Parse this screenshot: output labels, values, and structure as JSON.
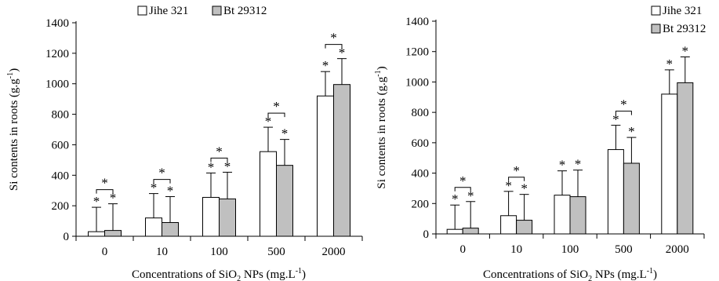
{
  "chart_data": [
    {
      "type": "bar",
      "xlabel": "Concentrations of SiO2 NPs (mg.L-1)",
      "xlabel_parts": {
        "main": "Concentrations of SiO",
        "sub": "2",
        "mid": " NPs (mg.L",
        "sup": "-1",
        "end": ")"
      },
      "ylabel": "Si contents in roots (g.g -1)",
      "ylabel_parts": {
        "main": "Si contents in roots (g.g",
        "sup": "-1",
        "end": ")"
      },
      "categories": [
        "0",
        "10",
        "100",
        "500",
        "2000"
      ],
      "ylim": [
        0,
        1400
      ],
      "yticks": [
        0,
        200,
        400,
        600,
        800,
        1000,
        1200,
        1400
      ],
      "legend_position": "top",
      "series": [
        {
          "name": "Jihe 321",
          "color": "#ffffff",
          "values": [
            30,
            120,
            255,
            555,
            920
          ],
          "errors": [
            160,
            160,
            160,
            160,
            160
          ],
          "star": [
            "*",
            "*",
            "*",
            "*",
            "*"
          ]
        },
        {
          "name": "Bt 29312",
          "color": "#c0c0c0",
          "values": [
            38,
            90,
            245,
            465,
            995
          ],
          "errors": [
            175,
            170,
            175,
            170,
            170
          ],
          "star": [
            "*",
            "*",
            "*",
            "*",
            "*"
          ]
        }
      ],
      "group_star": [
        "*",
        "*",
        "*",
        "*",
        "*"
      ]
    },
    {
      "type": "bar",
      "xlabel": "Concentrations of SiO2 NPs (mg.L-1)",
      "xlabel_parts": {
        "main": "Concentrations of SiO",
        "sub": "2",
        "mid": " NPs (mg.L",
        "sup": "-1",
        "end": ")"
      },
      "ylabel": "Si contents in roots (g.g -1)",
      "ylabel_parts": {
        "main": "Si contents in roots (g.g",
        "sup": "-1",
        "end": ")"
      },
      "categories": [
        "0",
        "10",
        "100",
        "500",
        "2000"
      ],
      "ylim": [
        0,
        1400
      ],
      "yticks": [
        0,
        200,
        400,
        600,
        800,
        1000,
        1200,
        1400
      ],
      "legend_position": "top-right",
      "series": [
        {
          "name": "Jihe 321",
          "color": "#ffffff",
          "values": [
            30,
            120,
            255,
            555,
            920
          ],
          "errors": [
            160,
            160,
            160,
            160,
            160
          ],
          "star": [
            "*",
            "*",
            "*",
            "*",
            "*"
          ]
        },
        {
          "name": "Bt 29312",
          "color": "#c0c0c0",
          "values": [
            38,
            90,
            245,
            465,
            995
          ],
          "errors": [
            175,
            170,
            175,
            170,
            170
          ],
          "star": [
            "*",
            "*",
            "*",
            "*",
            "*"
          ]
        }
      ],
      "group_star": [
        "*",
        "*",
        "",
        "*",
        ""
      ]
    }
  ]
}
